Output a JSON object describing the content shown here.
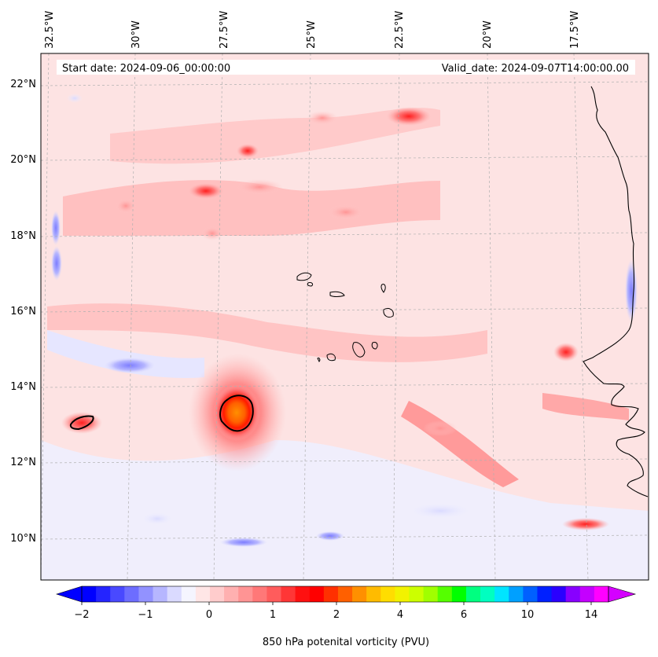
{
  "header": {
    "start_text": "Start date: 2024-09-06_00:00:00",
    "valid_text": "Valid_date: 2024-09-07T14:00:00.00"
  },
  "map": {
    "lon_labels": [
      "32.5°W",
      "30°W",
      "27.5°W",
      "25°W",
      "22.5°W",
      "20°W",
      "17.5°W"
    ],
    "lat_labels": [
      "22°N",
      "20°N",
      "18°N",
      "16°N",
      "14°N",
      "12°N",
      "10°N"
    ],
    "lon_range": [
      -33.0,
      -15.5
    ],
    "lat_range": [
      8.9,
      22.8
    ],
    "background": "#fde3e3"
  },
  "colorbar": {
    "label": "850 hPa potenital vorticity (PVU)",
    "tick_labels": [
      "−2",
      "−1",
      "0",
      "1",
      "2",
      "4",
      "6",
      "10",
      "14"
    ],
    "colors": [
      "#0000ff",
      "#2424ff",
      "#4949ff",
      "#6d6dff",
      "#9292ff",
      "#b6b6ff",
      "#dadaff",
      "#f5f5ff",
      "#ffe6e6",
      "#ffcccc",
      "#ffb0b0",
      "#ff9494",
      "#ff7878",
      "#ff5c5c",
      "#ff3636",
      "#ff1010",
      "#ff0000",
      "#ff3000",
      "#ff6000",
      "#ff9000",
      "#ffbb00",
      "#ffdd00",
      "#f2f200",
      "#ccff00",
      "#a0ff00",
      "#55ff00",
      "#00ff00",
      "#00ff80",
      "#00ffc0",
      "#00e5ff",
      "#00a0ff",
      "#0060ff",
      "#0020ff",
      "#2a00ff",
      "#8800ff",
      "#c400ff",
      "#ff00ff"
    ],
    "extend_low_color": "#0000ff",
    "extend_high_color": "#d400ff"
  },
  "features": {
    "vortex_main": {
      "lon": -27.2,
      "lat": 13.3,
      "peak_pvu": 4
    },
    "vortex_west": {
      "lon": -32.2,
      "lat": 13.0,
      "peak_pvu": 2
    }
  }
}
